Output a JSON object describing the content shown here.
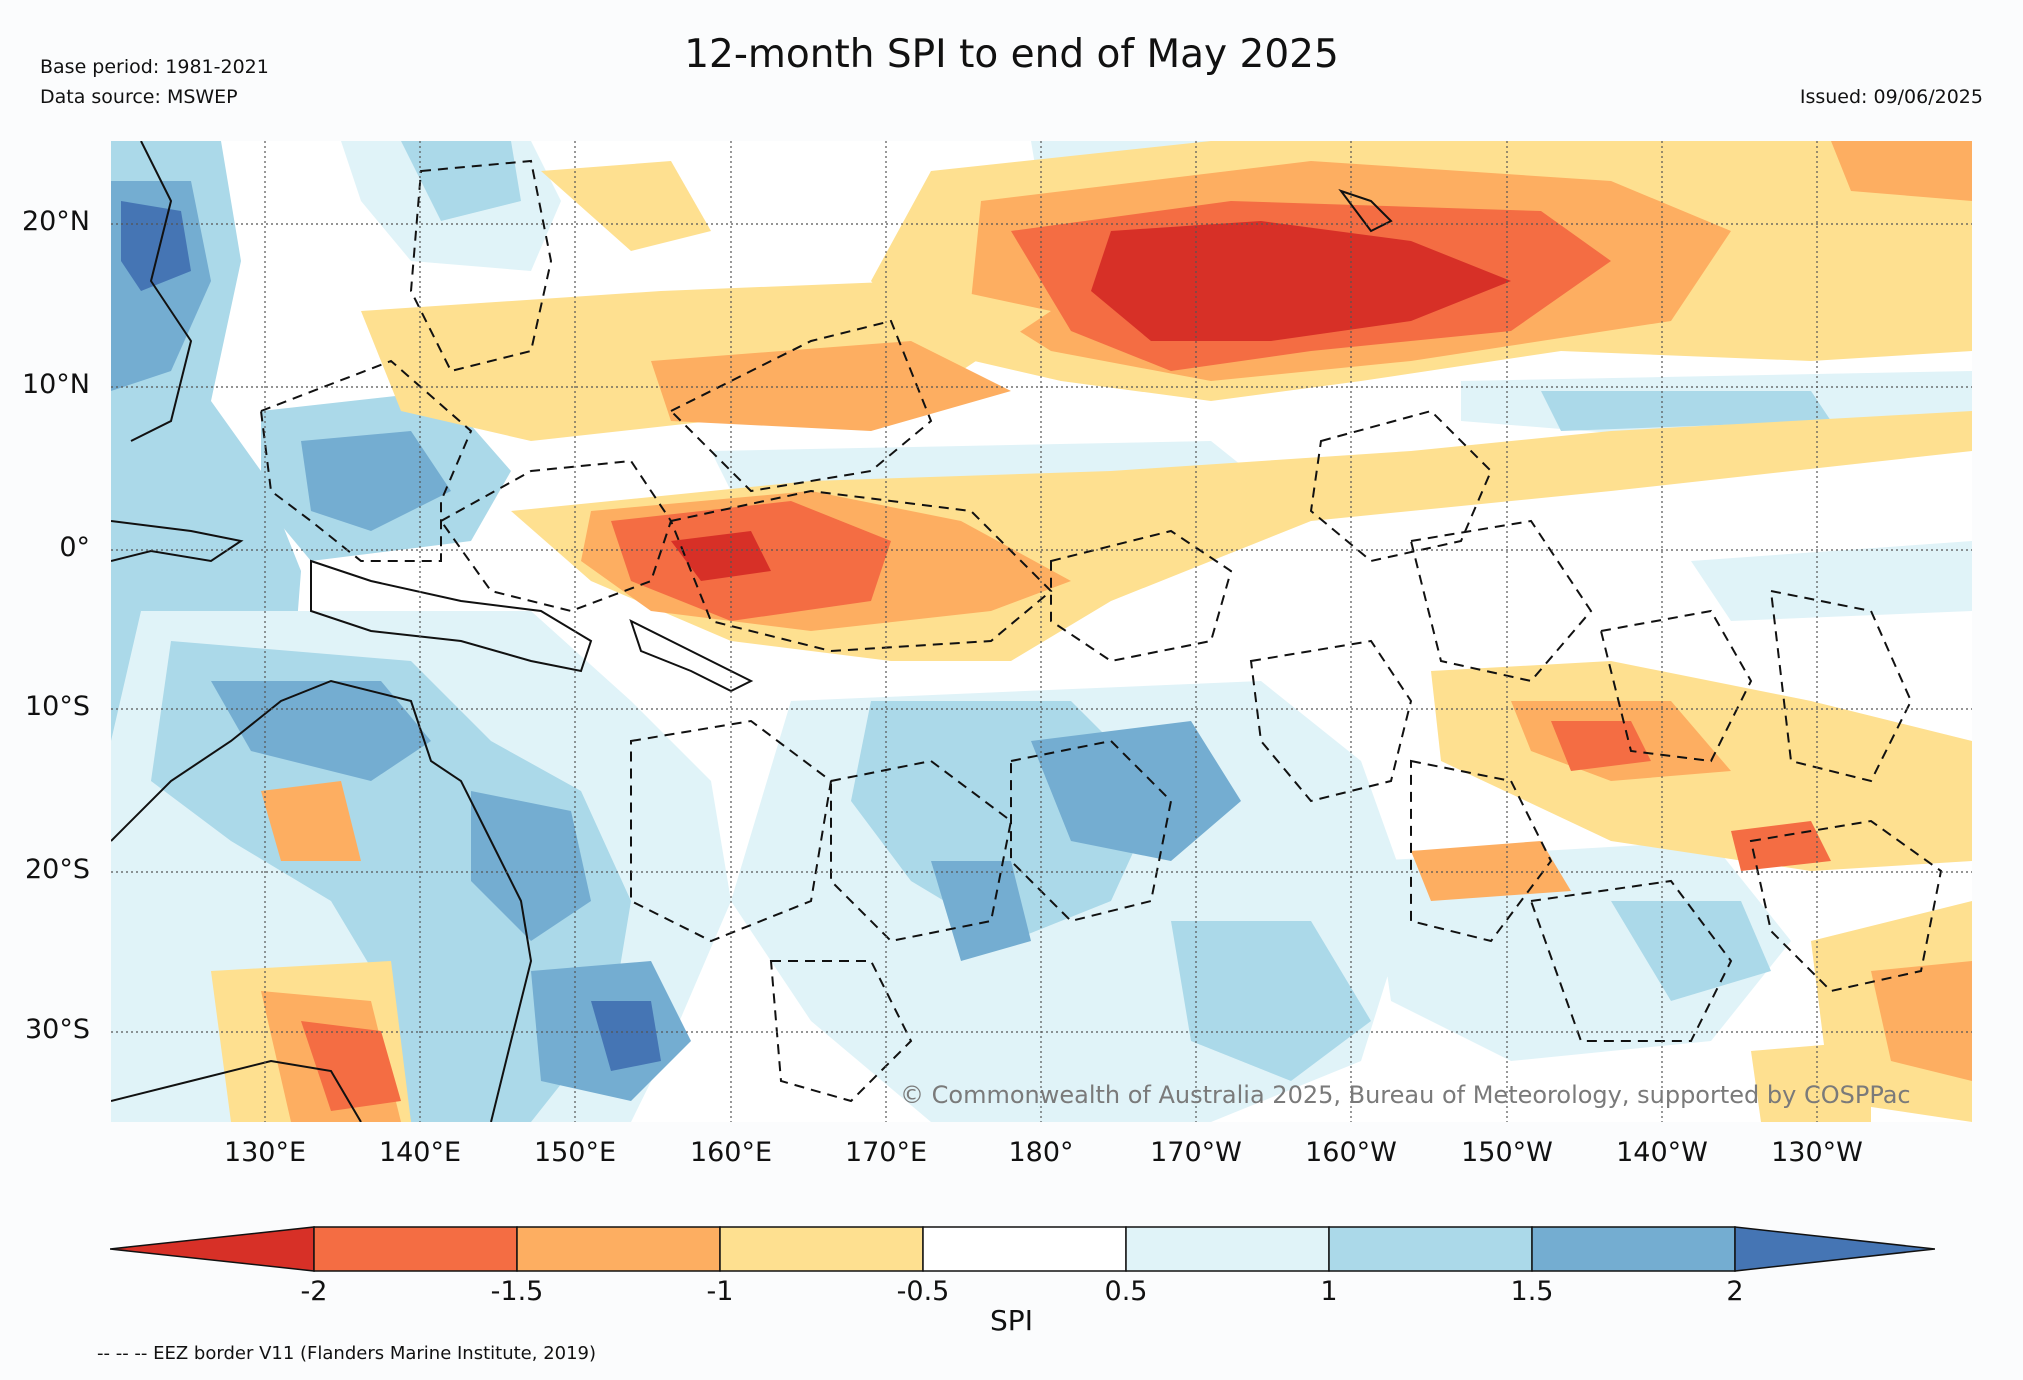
{
  "header": {
    "title": "12-month SPI to end of May 2025",
    "base_period": "Base period: 1981-2021",
    "data_source": "Data source: MSWEP",
    "issued": "Issued: 09/06/2025"
  },
  "axes": {
    "lat_labels": [
      "20°N",
      "10°N",
      "0°",
      "10°S",
      "20°S",
      "30°S"
    ],
    "lon_labels": [
      "130°E",
      "140°E",
      "150°E",
      "160°E",
      "170°E",
      "180°",
      "170°W",
      "160°W",
      "150°W",
      "140°W",
      "130°W"
    ]
  },
  "colorbar": {
    "label": "SPI",
    "ticks": [
      "-2",
      "-1.5",
      "-1",
      "-0.5",
      "0.5",
      "1",
      "1.5",
      "2"
    ],
    "colors": [
      "#d73027",
      "#f46d43",
      "#fdae61",
      "#fee090",
      "#ffffff",
      "#e0f3f8",
      "#abd9e9",
      "#74add1",
      "#4575b4"
    ]
  },
  "footer": {
    "eez_note": "-- -- -- EEZ border V11 (Flanders Marine Institute, 2019)",
    "copyright": "© Commonwealth of Australia 2025, Bureau of Meteorology, supported by COSPPac"
  }
}
